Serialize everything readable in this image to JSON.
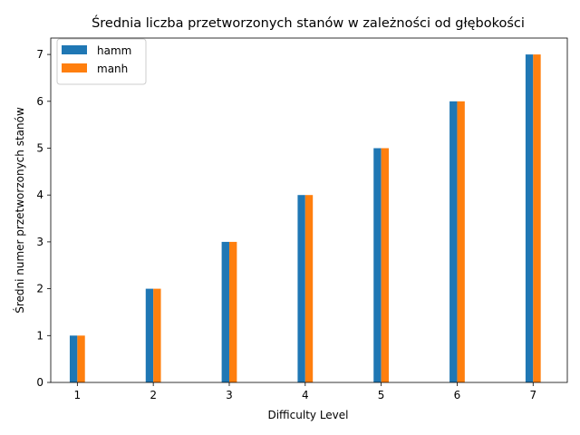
{
  "chart_data": {
    "type": "bar",
    "title": "Średnia liczba przetworzonych stanów w zależności od głębokości",
    "xlabel": "Difficulty Level",
    "ylabel": "Średni numer przetworzonych stanów",
    "categories": [
      "1",
      "2",
      "3",
      "4",
      "5",
      "6",
      "7"
    ],
    "series": [
      {
        "name": "hamm",
        "color": "#1f77b4",
        "values": [
          1,
          2,
          3,
          4,
          5,
          6,
          7
        ]
      },
      {
        "name": "manh",
        "color": "#ff7f0e",
        "values": [
          1,
          2,
          3,
          4,
          5,
          6,
          7
        ]
      }
    ],
    "xlim": [
      0.65,
      7.45
    ],
    "ylim": [
      0,
      7.35
    ],
    "yticks": [
      "0",
      "1",
      "2",
      "3",
      "4",
      "5",
      "6",
      "7"
    ],
    "grid": false,
    "legend_position": "top-left"
  }
}
